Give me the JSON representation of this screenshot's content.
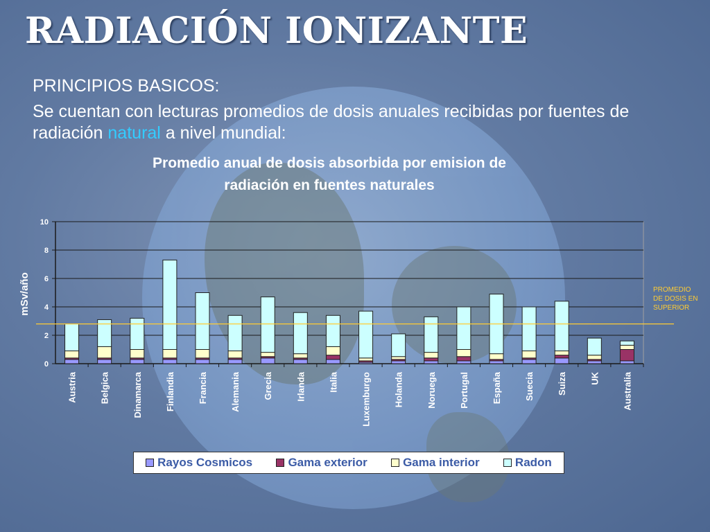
{
  "slide": {
    "title": "RADIACIÓN IONIZANTE",
    "subheading": "PRINCIPIOS BASICOS:",
    "paragraph_before": "Se cuentan con lecturas promedios de dosis anuales recibidas por fuentes de radiación ",
    "paragraph_highlight": "natural",
    "paragraph_after": " a nivel mundial:",
    "highlight_color": "#33ccff"
  },
  "chart_data": {
    "type": "bar",
    "stacked": true,
    "title_line1": "Promedio anual de dosis absorbida por emision de",
    "title_line2": "radiación en fuentes naturales",
    "ylabel": "mSv/año",
    "ylim": [
      0,
      10
    ],
    "yticks": [
      0,
      2,
      4,
      6,
      8,
      10
    ],
    "grid": true,
    "legend_position": "bottom",
    "categories": [
      "Austria",
      "Belgica",
      "Dinamarca",
      "Finlandia",
      "Francia",
      "Alemania",
      "Grecia",
      "Irlanda",
      "Italia",
      "Luxemburgo",
      "Holanda",
      "Noruega",
      "Portugal",
      "España",
      "Suecia",
      "Suiza",
      "UK",
      "Australia"
    ],
    "series": [
      {
        "name": "Rayos Cosmicos",
        "color": "#9999ff",
        "values": [
          0.3,
          0.3,
          0.3,
          0.3,
          0.3,
          0.3,
          0.4,
          0.3,
          0.3,
          0.1,
          0.2,
          0.2,
          0.2,
          0.2,
          0.3,
          0.4,
          0.2,
          0.2
        ]
      },
      {
        "name": "Gama exterior",
        "color": "#993366",
        "values": [
          0.1,
          0.1,
          0.1,
          0.1,
          0.1,
          0.1,
          0.1,
          0.1,
          0.3,
          0.1,
          0.1,
          0.2,
          0.3,
          0.1,
          0.1,
          0.2,
          0.1,
          0.8
        ]
      },
      {
        "name": "Gama interior",
        "color": "#ffffcc",
        "values": [
          0.5,
          0.8,
          0.6,
          0.6,
          0.6,
          0.5,
          0.3,
          0.3,
          0.6,
          0.2,
          0.2,
          0.4,
          0.5,
          0.4,
          0.5,
          0.3,
          0.3,
          0.3
        ]
      },
      {
        "name": "Radon",
        "color": "#ccffff",
        "values": [
          1.9,
          1.9,
          2.2,
          6.3,
          4.0,
          2.5,
          3.9,
          2.9,
          2.2,
          3.3,
          1.6,
          2.5,
          3.0,
          4.2,
          3.1,
          3.5,
          1.2,
          0.3
        ]
      }
    ],
    "average_line": {
      "value": 2.8,
      "label_lines": [
        "PROMEDIO",
        "DE DOSIS EN",
        "SUPERIOR"
      ],
      "color": "#ffcc33"
    }
  }
}
